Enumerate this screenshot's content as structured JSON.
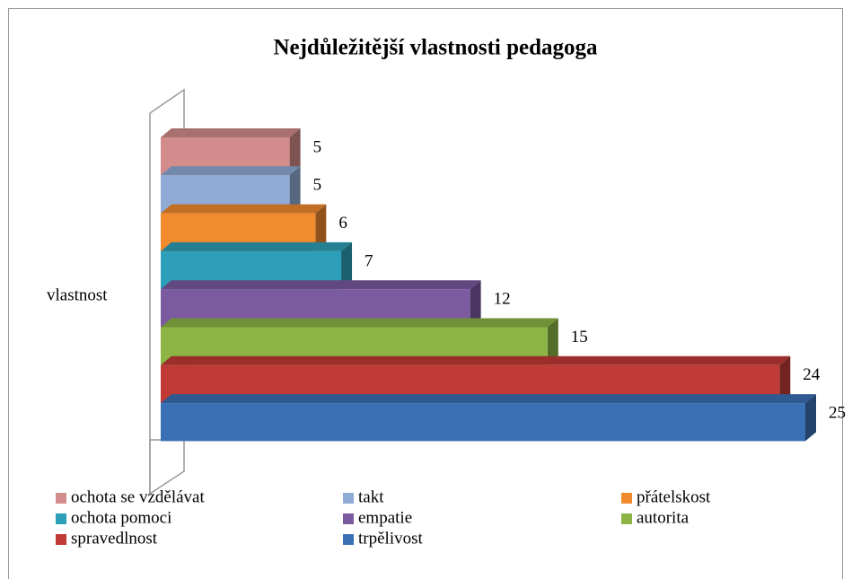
{
  "chart_data": {
    "type": "bar3d_horizontal",
    "title": "Nejdůležitější vlastnosti pedagoga",
    "categories": [
      "vlastnost"
    ],
    "series": [
      {
        "name": "ochota se vzdělávat",
        "color": "#d28c8b",
        "values": [
          5
        ]
      },
      {
        "name": "takt",
        "color": "#8fabd6",
        "values": [
          5
        ]
      },
      {
        "name": "přátelskost",
        "color": "#f28a2e",
        "values": [
          6
        ]
      },
      {
        "name": "ochota pomoci",
        "color": "#2e9fb8",
        "values": [
          7
        ]
      },
      {
        "name": "empatie",
        "color": "#7b5aa0",
        "values": [
          12
        ]
      },
      {
        "name": "autorita",
        "color": "#8cb545",
        "values": [
          15
        ]
      },
      {
        "name": "spravedlnost",
        "color": "#c03a36",
        "values": [
          24
        ]
      },
      {
        "name": "trpělivost",
        "color": "#3a6fb5",
        "values": [
          25
        ]
      }
    ],
    "legend": "bottom"
  }
}
